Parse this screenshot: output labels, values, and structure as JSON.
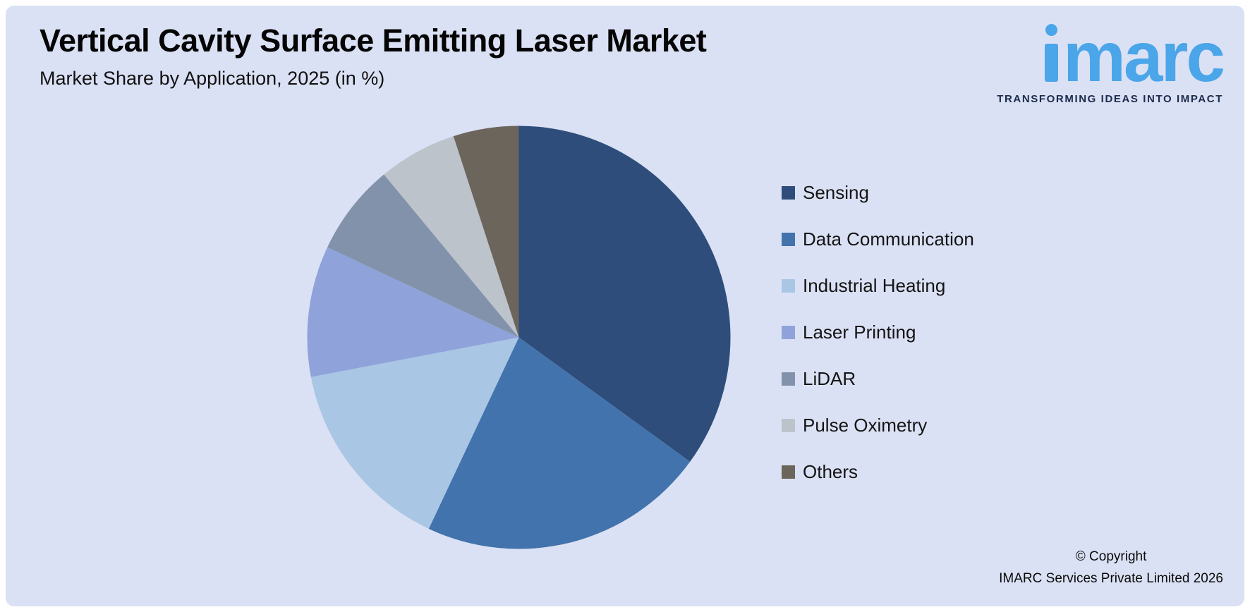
{
  "header": {
    "title": "Vertical Cavity Surface Emitting Laser Market",
    "subtitle": "Market Share by Application, 2025 (in %)"
  },
  "logo": {
    "brand": "imarc",
    "tagline": "TRANSFORMING IDEAS INTO IMPACT",
    "brand_color": "#4aa5e9",
    "tagline_color": "#1b2b4c"
  },
  "footer": {
    "copyright_line1": "© Copyright",
    "copyright_line2": "IMARC Services Private Limited 2026"
  },
  "chart_data": {
    "type": "pie",
    "title": "Market Share by Application, 2025 (in %)",
    "labels": [
      "Sensing",
      "Data Communication",
      "Industrial Heating",
      "Laser Printing",
      "LiDAR",
      "Pulse Oximetry",
      "Others"
    ],
    "values": [
      35,
      22,
      15,
      10,
      7,
      6,
      5
    ],
    "colors": [
      "#2e4d7b",
      "#4273ac",
      "#a9c6e5",
      "#8fa3da",
      "#8292aa",
      "#bdc3cb",
      "#6c655c"
    ],
    "start_angle_deg": -90,
    "direction": "clockwise",
    "legend_position": "right",
    "background": "#dbe1f4"
  }
}
